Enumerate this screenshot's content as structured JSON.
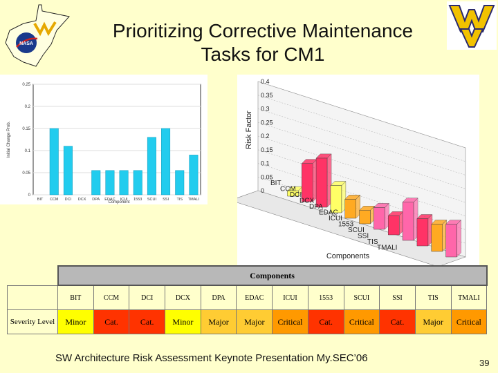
{
  "slide": {
    "title_line1": "Prioritizing Corrective Maintenance",
    "title_line2": "Tasks for CM1",
    "footer": "SW Architecture Risk Assessment Keynote Presentation My.SEC’06",
    "page_number": "39"
  },
  "logos": {
    "left_badge": "NASA"
  },
  "chart_data": [
    {
      "type": "bar",
      "ylabel": "Initial Change Prob.",
      "xlabel": "Component",
      "categories": [
        "BIT",
        "CCM",
        "DCI",
        "DCX",
        "DPA",
        "EDAC",
        "ICUI",
        "1553",
        "SCUI",
        "SSI",
        "TIS",
        "TMALI"
      ],
      "values": [
        0,
        0.15,
        0.11,
        0,
        0.055,
        0.055,
        0.055,
        0.055,
        0.13,
        0.15,
        0.055,
        0.09
      ],
      "ylim": [
        0,
        0.25
      ],
      "yticks": [
        "0",
        "0.05",
        "0.1",
        "0.15",
        "0.2",
        "0.25"
      ],
      "color": "#22ccee"
    },
    {
      "type": "bar",
      "ylabel": "Risk Factor",
      "xlabel": "Components",
      "categories": [
        "BIT",
        "CCM",
        "DCI",
        "DCX",
        "DPA",
        "EDAC",
        "ICUI",
        "1553",
        "SCUI",
        "SSI",
        "TIS",
        "TMALI"
      ],
      "values": [
        0.02,
        0.14,
        0.18,
        0.1,
        0.07,
        0.05,
        0.08,
        0.07,
        0.14,
        0.1,
        0.1,
        0.12
      ],
      "ylim": [
        0,
        0.4
      ],
      "yticks": [
        "0",
        "0.05",
        "0.1",
        "0.15",
        "0.2",
        "0.25",
        "0.3",
        "0.35",
        "0.4"
      ],
      "colors": [
        "#ffff66",
        "#ff3366",
        "#ff3366",
        "#ffff66",
        "#ffaa22",
        "#ffaa22",
        "#ff66aa",
        "#ff3366",
        "#ff66aa",
        "#ff3366",
        "#ffaa22",
        "#ff66aa"
      ]
    }
  ],
  "table": {
    "header": "Components",
    "row_label": "Severity Level",
    "columns": [
      "BIT",
      "CCM",
      "DCI",
      "DCX",
      "DPA",
      "EDAC",
      "ICUI",
      "1553",
      "SCUI",
      "SSI",
      "TIS",
      "TMALI"
    ],
    "severity": [
      "Minor",
      "Cat.",
      "Cat.",
      "Minor",
      "Major",
      "Major",
      "Critical",
      "Cat.",
      "Critical",
      "Cat.",
      "Major",
      "Critical"
    ],
    "severity_colors": {
      "Minor": "#ffff00",
      "Major": "#ffcc33",
      "Critical": "#ff9900",
      "Cat.": "#ff3300"
    }
  }
}
